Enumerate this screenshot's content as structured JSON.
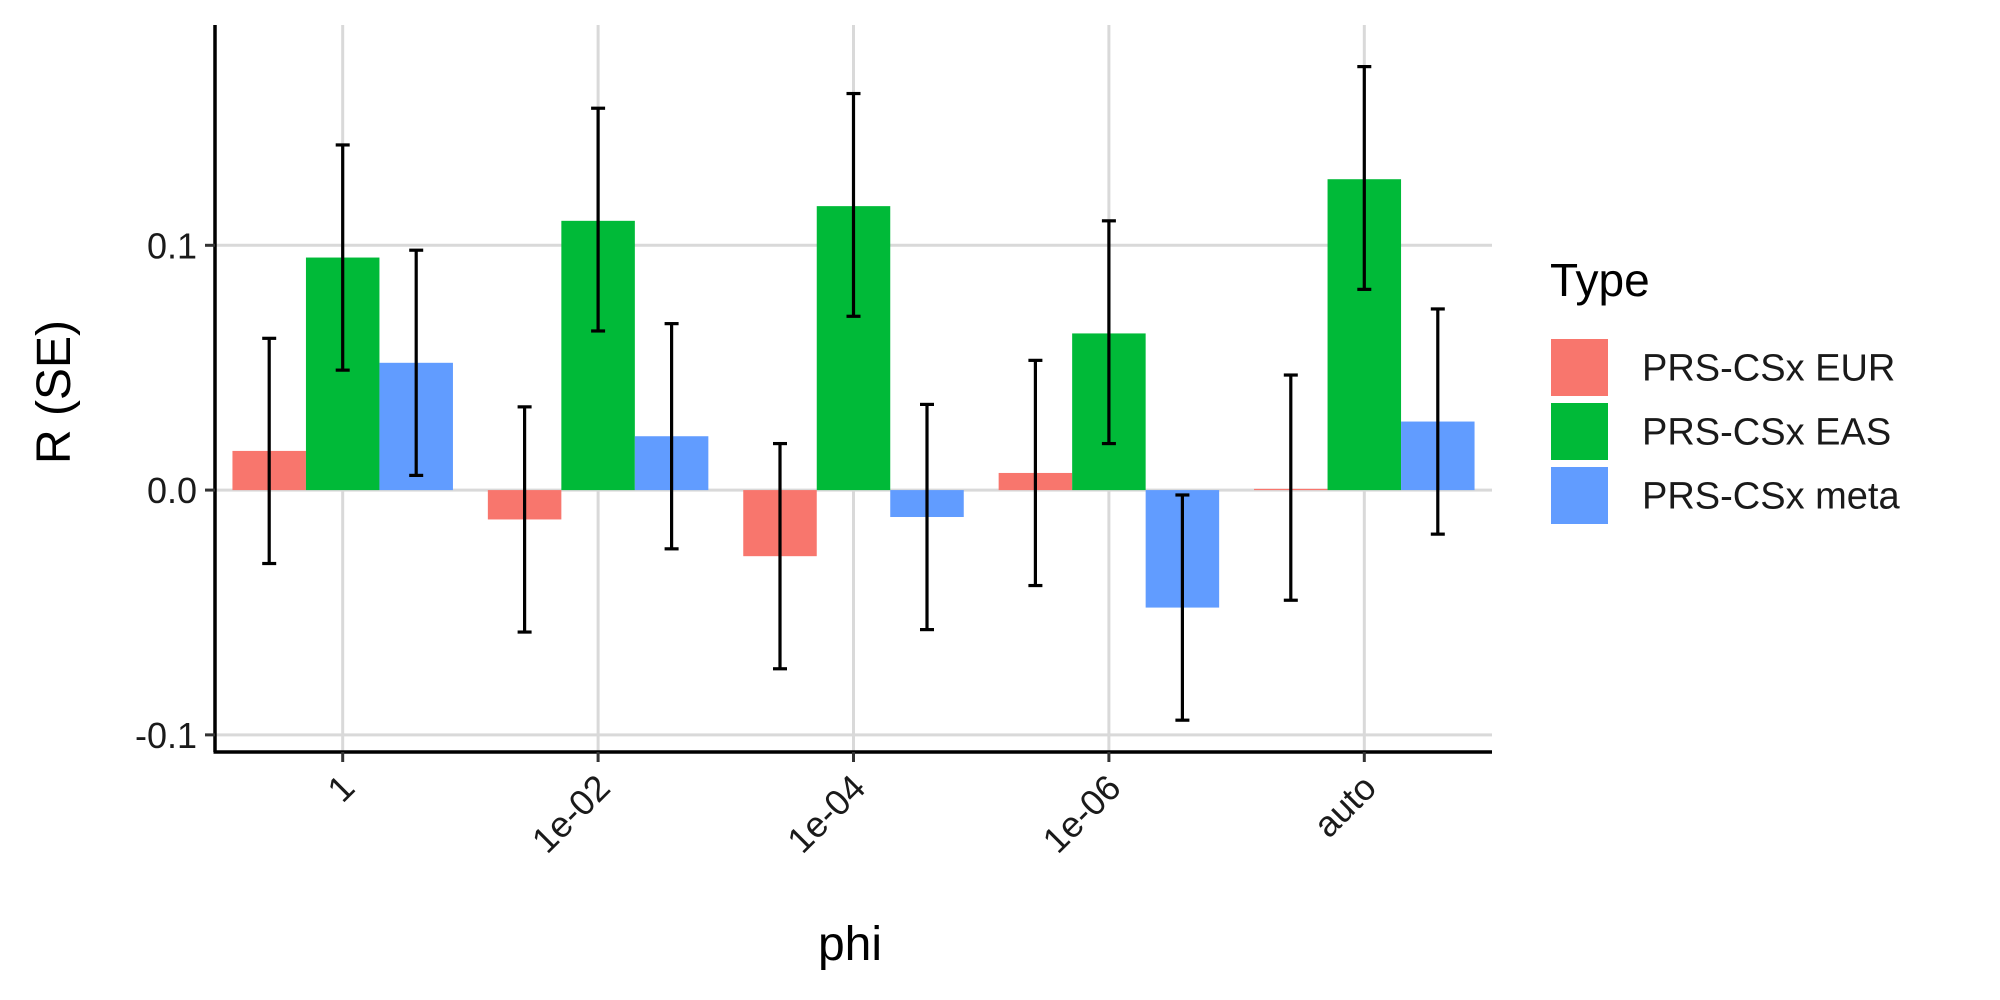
{
  "chart_data": {
    "type": "bar",
    "xlabel": "phi",
    "ylabel": "R (SE)",
    "categories": [
      "1",
      "1e-02",
      "1e-04",
      "1e-06",
      "auto"
    ],
    "y_ticks": [
      -0.1,
      0.0,
      0.1
    ],
    "y_tick_labels": [
      "-0.1",
      "0.0",
      "0.1"
    ],
    "ylim": [
      -0.107,
      0.19
    ],
    "grid": true,
    "legend": {
      "title": "Type",
      "position": "right"
    },
    "series": [
      {
        "name": "PRS-CSx EUR",
        "color": "#F8766D",
        "values": [
          0.016,
          -0.012,
          -0.027,
          0.007,
          0.0005
        ],
        "error_low": [
          -0.03,
          -0.058,
          -0.073,
          -0.039,
          -0.045
        ],
        "error_high": [
          0.062,
          0.034,
          0.019,
          0.053,
          0.047
        ]
      },
      {
        "name": "PRS-CSx EAS",
        "color": "#00BA38",
        "values": [
          0.095,
          0.11,
          0.116,
          0.064,
          0.127
        ],
        "error_low": [
          0.049,
          0.065,
          0.071,
          0.019,
          0.082
        ],
        "error_high": [
          0.141,
          0.156,
          0.162,
          0.11,
          0.173
        ]
      },
      {
        "name": "PRS-CSx meta",
        "color": "#619CFF",
        "values": [
          0.052,
          0.022,
          -0.011,
          -0.048,
          0.028
        ],
        "error_low": [
          0.006,
          -0.024,
          -0.057,
          -0.094,
          -0.018
        ],
        "error_high": [
          0.098,
          0.068,
          0.035,
          -0.002,
          0.074
        ]
      }
    ]
  }
}
